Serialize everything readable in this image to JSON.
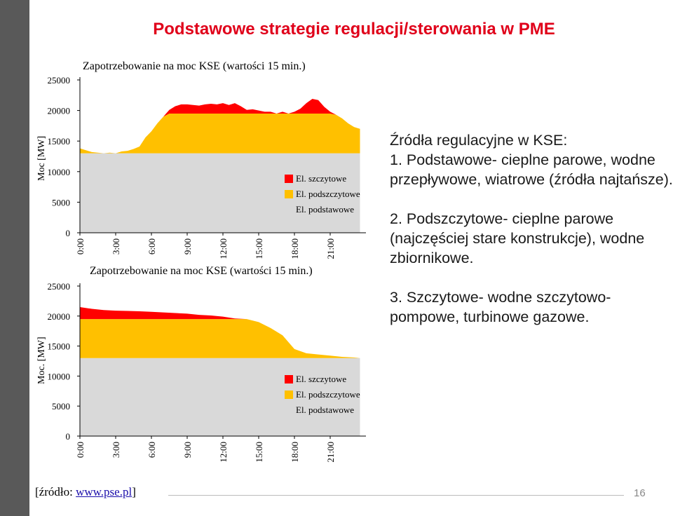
{
  "slide": {
    "title": "Podstawowe strategie regulacji/sterowania w PME",
    "source_prefix": "[źródło: ",
    "source_link": "www.pse.pl",
    "source_suffix": "]",
    "page_number": "16",
    "text": {
      "heading": "Źródła regulacyjne w KSE:",
      "item1": "1. Podstawowe- cieplne parowe, wodne przepływowe, wiatrowe (źródła najtańsze).",
      "item2": "2. Podszczytowe- cieplne parowe (najczęściej stare konstrukcje), wodne zbiornikowe.",
      "item3": "3. Szczytowe- wodne szczytowo-pompowe, turbinowe gazowe."
    }
  },
  "chart_data": [
    {
      "type": "area",
      "stacked": true,
      "title": "Zapotrzebowanie na moc KSE (wartości 15 min.)",
      "ylabel": "Moc [MW]",
      "xlabel": "",
      "ylim": [
        0,
        25000
      ],
      "yticks": [
        "0",
        "5000",
        "10000",
        "15000",
        "20000",
        "25000"
      ],
      "xticks": [
        "0:00",
        "3:00",
        "6:00",
        "9:00",
        "12:00",
        "15:00",
        "18:00",
        "21:00"
      ],
      "x_hours": [
        0,
        0.5,
        1,
        1.5,
        2,
        2.5,
        3,
        3.5,
        4,
        4.5,
        5,
        5.5,
        6,
        6.5,
        7,
        7.5,
        8,
        8.5,
        9,
        9.5,
        10,
        10.5,
        11,
        11.5,
        12,
        12.5,
        13,
        13.5,
        14,
        14.5,
        15,
        15.5,
        16,
        16.5,
        17,
        17.5,
        18,
        18.5,
        19,
        19.5,
        20,
        20.5,
        21,
        21.5,
        22,
        22.5,
        23,
        23.5
      ],
      "series": [
        {
          "name": "El. podstawowe",
          "color": "#d9d9d9",
          "values": [
            13000,
            13000,
            13000,
            13000,
            13000,
            13000,
            13000,
            13000,
            13000,
            13000,
            13000,
            13000,
            13000,
            13000,
            13000,
            13000,
            13000,
            13000,
            13000,
            13000,
            13000,
            13000,
            13000,
            13000,
            13000,
            13000,
            13000,
            13000,
            13000,
            13000,
            13000,
            13000,
            13000,
            13000,
            13000,
            13000,
            13000,
            13000,
            13000,
            13000,
            13000,
            13000,
            13000,
            13000,
            13000,
            13000,
            13000,
            13000
          ]
        },
        {
          "name": "El. podszczytowe",
          "color": "#ffc000",
          "values": [
            800,
            500,
            200,
            100,
            0,
            100,
            0,
            300,
            400,
            700,
            1100,
            2600,
            3600,
            4900,
            6000,
            6500,
            6500,
            6500,
            6500,
            6500,
            6500,
            6500,
            6500,
            6500,
            6500,
            6500,
            6500,
            6500,
            6500,
            6500,
            6500,
            6500,
            6500,
            6500,
            6500,
            6500,
            6500,
            6500,
            6500,
            6500,
            6500,
            6500,
            6500,
            6300,
            5700,
            4900,
            4300,
            4000
          ]
        },
        {
          "name": "El. szczytowe",
          "color": "#ff0000",
          "values": [
            0,
            0,
            0,
            0,
            0,
            0,
            0,
            0,
            0,
            0,
            0,
            0,
            0,
            0,
            0,
            600,
            1200,
            1500,
            1500,
            1400,
            1300,
            1500,
            1600,
            1500,
            1700,
            1400,
            1700,
            1200,
            600,
            700,
            500,
            300,
            300,
            0,
            300,
            0,
            300,
            800,
            1700,
            2400,
            2200,
            1100,
            300,
            0,
            0,
            0,
            0,
            0
          ]
        }
      ],
      "legend": "right-inside"
    },
    {
      "type": "area",
      "stacked": true,
      "title": "Zapotrzebowanie na moc KSE (wartości 15 min.)",
      "ylabel": "Moc. [MW]",
      "xlabel": "",
      "ylim": [
        0,
        25000
      ],
      "yticks": [
        "0",
        "5000",
        "10000",
        "15000",
        "20000",
        "25000"
      ],
      "xticks": [
        "0:00",
        "3:00",
        "6:00",
        "9:00",
        "12:00",
        "15:00",
        "18:00",
        "21:00"
      ],
      "x_hours": [
        0,
        1,
        2,
        3,
        4,
        5,
        6,
        7,
        8,
        9,
        10,
        11,
        12,
        13,
        14,
        15,
        16,
        17,
        18,
        19,
        20,
        21,
        22,
        23,
        23.5
      ],
      "series": [
        {
          "name": "El. podstawowe",
          "color": "#d9d9d9",
          "values": [
            13000,
            13000,
            13000,
            13000,
            13000,
            13000,
            13000,
            13000,
            13000,
            13000,
            13000,
            13000,
            13000,
            13000,
            13000,
            13000,
            13000,
            13000,
            13000,
            13000,
            13000,
            13000,
            13000,
            13000,
            13000
          ]
        },
        {
          "name": "El. podszczytowe",
          "color": "#ffc000",
          "values": [
            6500,
            6500,
            6500,
            6500,
            6500,
            6500,
            6500,
            6500,
            6500,
            6500,
            6500,
            6500,
            6500,
            6500,
            6500,
            6000,
            5000,
            3800,
            1500,
            800,
            600,
            400,
            200,
            100,
            0
          ]
        },
        {
          "name": "El. szczytowe",
          "color": "#ff0000",
          "values": [
            2000,
            1700,
            1500,
            1400,
            1350,
            1300,
            1200,
            1100,
            1000,
            900,
            700,
            600,
            400,
            100,
            0,
            0,
            0,
            0,
            0,
            0,
            0,
            0,
            0,
            0,
            0
          ]
        }
      ],
      "legend": "right-inside"
    }
  ]
}
